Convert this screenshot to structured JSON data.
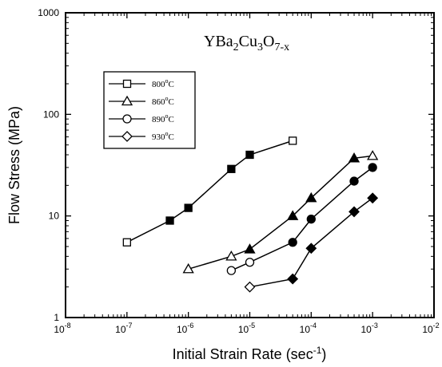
{
  "chart_data": {
    "type": "line",
    "title": "",
    "annotation": "YBa2Cu3O7-x",
    "annotation_parts": {
      "y": "YBa",
      "sub1": "2",
      "cu": "Cu",
      "sub2": "3",
      "o": "O",
      "sub3": "7-x"
    },
    "xlabel": {
      "main": "Initial Strain Rate (sec",
      "sup": "-1",
      "close": ")"
    },
    "ylabel": "Flow Stress (MPa)",
    "x_scale": "log",
    "y_scale": "log",
    "xlim": [
      1e-08,
      0.01
    ],
    "ylim": [
      1,
      1000
    ],
    "grid": false,
    "legend_position": "upper-left",
    "x_ticks": [
      {
        "value": 1e-08,
        "base": "10",
        "exp": "-8"
      },
      {
        "value": 1e-07,
        "base": "10",
        "exp": "-7"
      },
      {
        "value": 1e-06,
        "base": "10",
        "exp": "-6"
      },
      {
        "value": 1e-05,
        "base": "10",
        "exp": "-5"
      },
      {
        "value": 0.0001,
        "base": "10",
        "exp": "-4"
      },
      {
        "value": 0.001,
        "base": "10",
        "exp": "-3"
      },
      {
        "value": 0.01,
        "base": "10",
        "exp": "-2"
      }
    ],
    "y_ticks": [
      {
        "value": 1,
        "label": "1"
      },
      {
        "value": 10,
        "label": "10"
      },
      {
        "value": 100,
        "label": "100"
      },
      {
        "value": 1000,
        "label": "1000"
      }
    ],
    "series": [
      {
        "name": "800°C",
        "label_num": "800",
        "label_unit": "C",
        "marker": "square",
        "points": [
          {
            "x": 1e-07,
            "y": 5.5,
            "filled": false
          },
          {
            "x": 5e-07,
            "y": 9,
            "filled": true
          },
          {
            "x": 1e-06,
            "y": 12,
            "filled": true
          },
          {
            "x": 5e-06,
            "y": 29,
            "filled": true
          },
          {
            "x": 1e-05,
            "y": 40,
            "filled": true
          },
          {
            "x": 5e-05,
            "y": 55,
            "filled": false
          }
        ]
      },
      {
        "name": "860°C",
        "label_num": "860",
        "label_unit": "C",
        "marker": "triangle",
        "points": [
          {
            "x": 1e-06,
            "y": 3,
            "filled": false
          },
          {
            "x": 5e-06,
            "y": 4,
            "filled": false
          },
          {
            "x": 1e-05,
            "y": 4.7,
            "filled": true
          },
          {
            "x": 5e-05,
            "y": 10,
            "filled": true
          },
          {
            "x": 0.0001,
            "y": 15,
            "filled": true
          },
          {
            "x": 0.0005,
            "y": 37,
            "filled": true
          },
          {
            "x": 0.001,
            "y": 39,
            "filled": false
          }
        ]
      },
      {
        "name": "890°C",
        "label_num": "890",
        "label_unit": "C",
        "marker": "circle",
        "points": [
          {
            "x": 5e-06,
            "y": 2.9,
            "filled": false
          },
          {
            "x": 1e-05,
            "y": 3.5,
            "filled": false
          },
          {
            "x": 5e-05,
            "y": 5.5,
            "filled": true
          },
          {
            "x": 0.0001,
            "y": 9.3,
            "filled": true
          },
          {
            "x": 0.0005,
            "y": 22,
            "filled": true
          },
          {
            "x": 0.001,
            "y": 30,
            "filled": true
          }
        ]
      },
      {
        "name": "930°C",
        "label_num": "930",
        "label_unit": "C",
        "marker": "diamond",
        "points": [
          {
            "x": 1e-05,
            "y": 2,
            "filled": false
          },
          {
            "x": 5e-05,
            "y": 2.4,
            "filled": true
          },
          {
            "x": 0.0001,
            "y": 4.8,
            "filled": true
          },
          {
            "x": 0.0005,
            "y": 11,
            "filled": true
          },
          {
            "x": 0.001,
            "y": 15,
            "filled": true
          }
        ]
      }
    ]
  }
}
